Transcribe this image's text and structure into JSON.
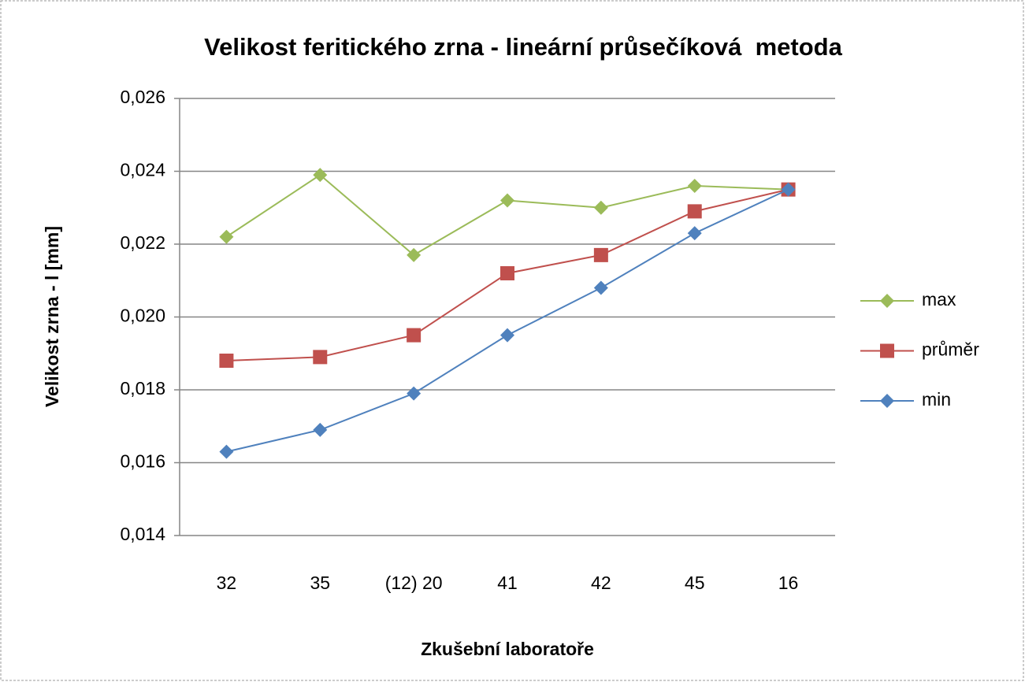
{
  "chart_data": {
    "type": "line",
    "title": "Velikost feritického zrna - lineární průsečíková  metoda",
    "x_label": "Zkušební laboratoře",
    "y_label": "Velikost zrna - l [mm]",
    "categories": [
      "32",
      "35",
      "(12) 20",
      "41",
      "42",
      "45",
      "16"
    ],
    "series": [
      {
        "name": "max",
        "color": "#9bbb59",
        "marker": "diamond",
        "values": [
          0.0222,
          0.0239,
          0.0217,
          0.0232,
          0.023,
          0.0236,
          0.0235
        ]
      },
      {
        "name": "průměr",
        "color": "#c0504d",
        "marker": "square",
        "values": [
          0.0188,
          0.0189,
          0.0195,
          0.0212,
          0.0217,
          0.0229,
          0.0235
        ]
      },
      {
        "name": "min",
        "color": "#4f81bd",
        "marker": "diamond",
        "values": [
          0.0163,
          0.0169,
          0.0179,
          0.0195,
          0.0208,
          0.0223,
          0.0235
        ]
      }
    ],
    "ylim": [
      0.014,
      0.026
    ],
    "yticks": [
      {
        "value": 0.014,
        "label": "0,014"
      },
      {
        "value": 0.016,
        "label": "0,016"
      },
      {
        "value": 0.018,
        "label": "0,018"
      },
      {
        "value": 0.02,
        "label": "0,020"
      },
      {
        "value": 0.022,
        "label": "0,022"
      },
      {
        "value": 0.024,
        "label": "0,024"
      },
      {
        "value": 0.026,
        "label": "0,026"
      }
    ],
    "grid": true,
    "legend": "right"
  }
}
